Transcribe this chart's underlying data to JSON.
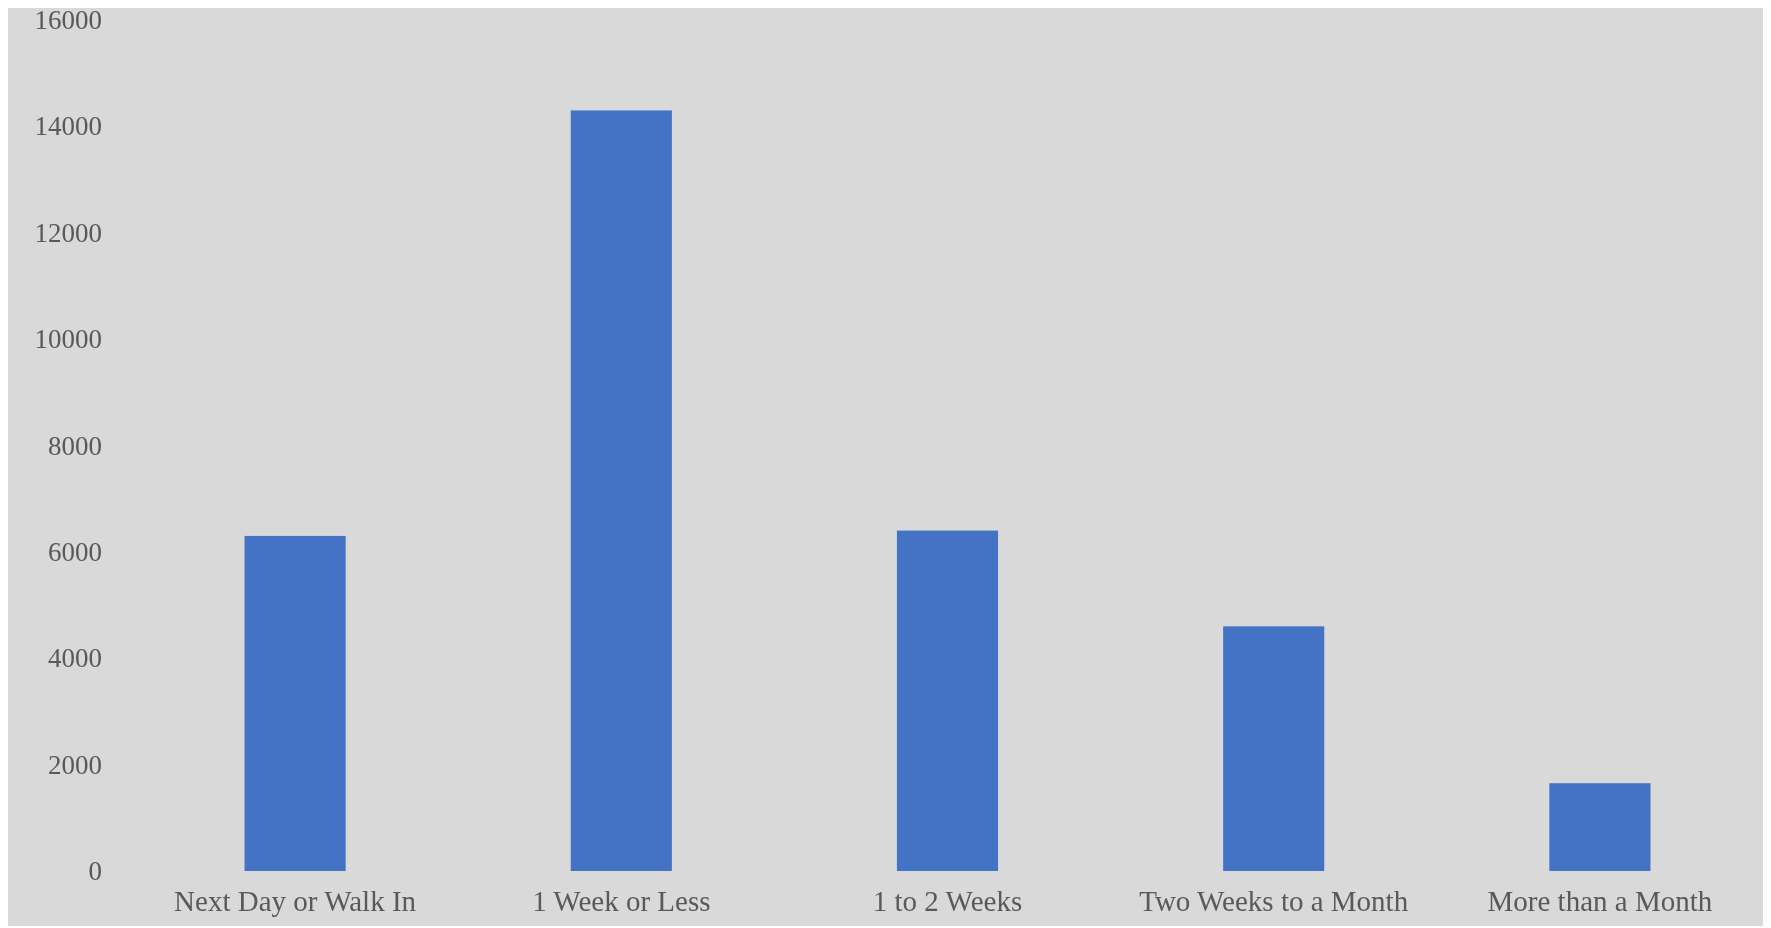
{
  "chart_data": {
    "type": "bar",
    "categories": [
      "Next Day or Walk In",
      "1 Week or Less",
      "1 to 2 Weeks",
      "Two Weeks to a Month",
      "More than a Month"
    ],
    "values": [
      6300,
      14300,
      6400,
      4600,
      1650
    ],
    "color": "#4472c4",
    "ylim": [
      0,
      16000
    ],
    "yticks": [
      0,
      2000,
      4000,
      6000,
      8000,
      10000,
      12000,
      14000,
      16000
    ],
    "grid": false
  }
}
